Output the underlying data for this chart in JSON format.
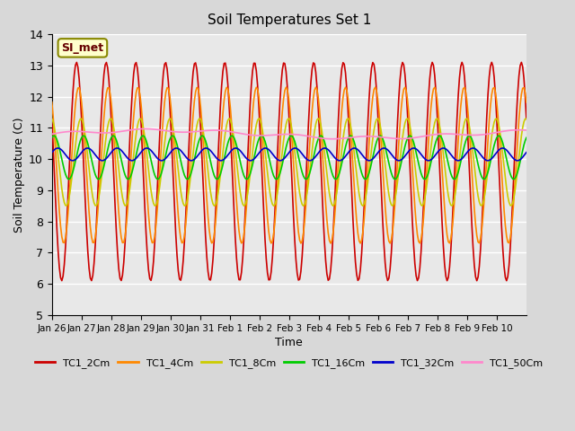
{
  "title": "Soil Temperatures Set 1",
  "xlabel": "Time",
  "ylabel": "Soil Temperature (C)",
  "ylim": [
    5.0,
    14.0
  ],
  "yticks": [
    5.0,
    6.0,
    7.0,
    8.0,
    9.0,
    10.0,
    11.0,
    12.0,
    13.0,
    14.0
  ],
  "bg_color": "#e8e8e8",
  "grid_color": "#ffffff",
  "legend_entries": [
    "TC1_2Cm",
    "TC1_4Cm",
    "TC1_8Cm",
    "TC1_16Cm",
    "TC1_32Cm",
    "TC1_50Cm"
  ],
  "line_colors": [
    "#cc0000",
    "#ff8800",
    "#cccc00",
    "#00cc00",
    "#0000cc",
    "#ff88cc"
  ],
  "annotation_text": "SI_met",
  "annotation_bg": "#ffffcc",
  "annotation_border": "#888800",
  "days": 16,
  "xtick_labels": [
    "Jan 26",
    "Jan 27",
    "Jan 28",
    "Jan 29",
    "Jan 30",
    "Jan 31",
    "Feb 1",
    "Feb 2",
    "Feb 3",
    "Feb 4",
    "Feb 5",
    "Feb 6",
    "Feb 7",
    "Feb 8",
    "Feb 9",
    "Feb 10"
  ]
}
